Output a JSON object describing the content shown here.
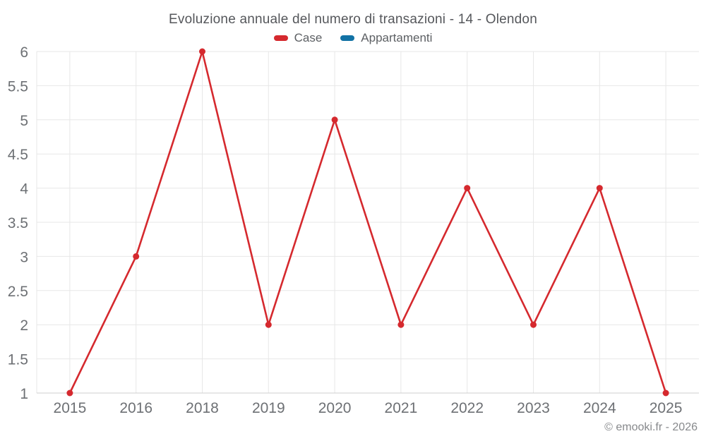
{
  "header": {
    "title": "Evoluzione annuale del numero di transazioni - 14 - Olendon"
  },
  "footer": {
    "attribution": "© emooki.fr - 2026"
  },
  "chart_data": {
    "type": "line",
    "title": "Evoluzione annuale del numero di transazioni - 14 - Olendon",
    "categories": [
      "2015",
      "2016",
      "2018",
      "2019",
      "2020",
      "2021",
      "2022",
      "2023",
      "2024",
      "2025"
    ],
    "series": [
      {
        "name": "Case",
        "color": "#d5292e",
        "values": [
          1,
          3,
          6,
          2,
          5,
          2,
          4,
          2,
          4,
          1
        ]
      },
      {
        "name": "Appartamenti",
        "color": "#1272a5",
        "values": []
      }
    ],
    "ylim": [
      1,
      6
    ],
    "ytick_step": 0.5,
    "grid": true,
    "legend_position": "top",
    "xlabel": "",
    "ylabel": "",
    "colors": {
      "gridline": "#e7e7e7",
      "axis_line": "#cfcfcf",
      "tick_label": "#6d7074",
      "title": "#55575b",
      "legend_label": "#5d6064",
      "footer": "#87898c",
      "background": "#ffffff"
    }
  }
}
